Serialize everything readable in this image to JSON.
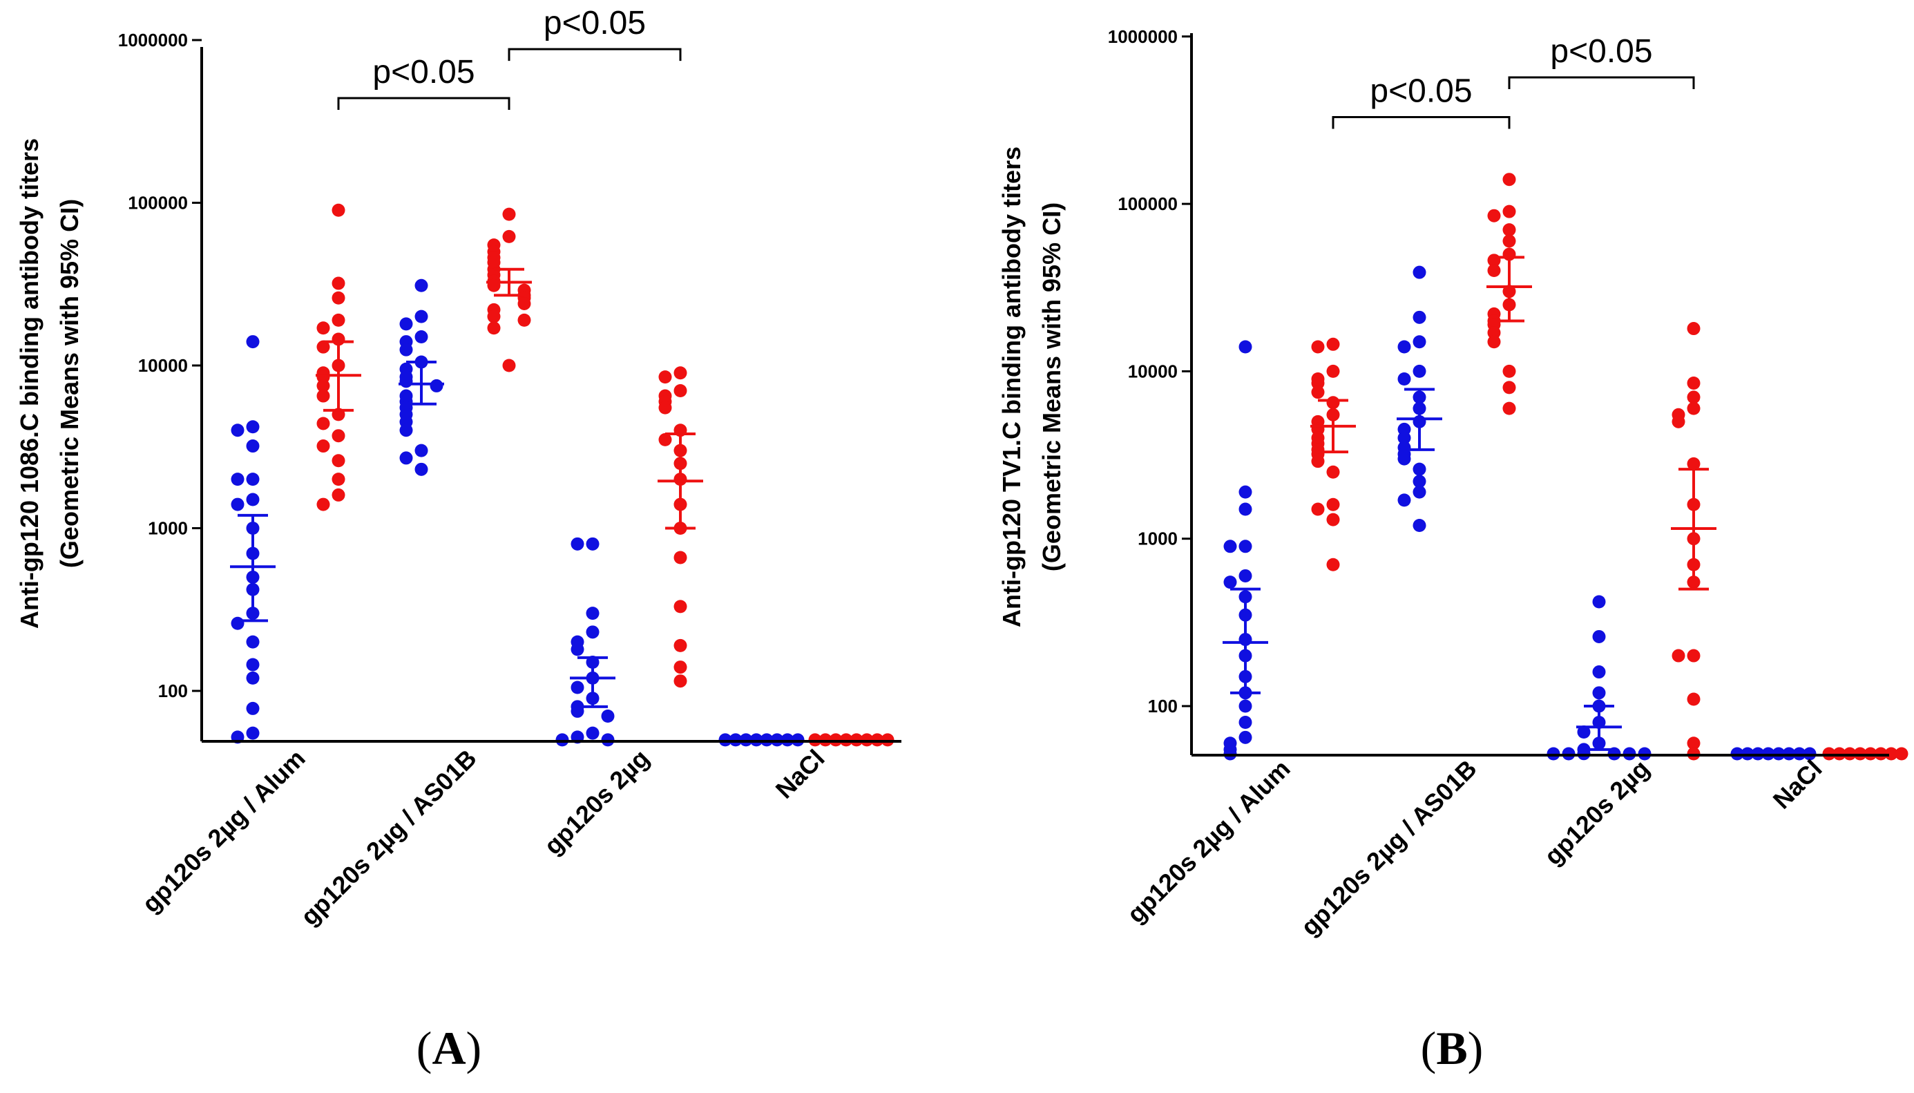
{
  "chart_data": [
    {
      "type": "scatter",
      "panel": "(A)",
      "panel_paren_open": "(",
      "panel_letter": "A",
      "panel_paren_close": ")",
      "ylabel_line1": "Anti-gp120 1086.C binding antibody titers",
      "ylabel_line2": "(Geometric Means with 95% CI)",
      "yscale": "log",
      "ylim": [
        50,
        1000000
      ],
      "yticks": [
        100,
        1000,
        10000,
        100000,
        1000000
      ],
      "ytick_labels": [
        "100",
        "1000",
        "10000",
        "100000",
        "1000000"
      ],
      "category_labels": [
        "gp120s 2µg / Alum",
        "gp120s 2µg / AS01B",
        "gp120s 2µg",
        "NaCl"
      ],
      "series": [
        {
          "name": "gp120s 2µg / Alum (blue)",
          "color": "#1010e0",
          "values": [
            14000,
            4200,
            4000,
            3200,
            2000,
            2000,
            1500,
            1400,
            1000,
            700,
            500,
            420,
            300,
            260,
            200,
            145,
            120,
            78,
            55,
            52
          ],
          "gmean": 580,
          "ci": [
            270,
            1200
          ]
        },
        {
          "name": "gp120s 2µg / Alum (red)",
          "color": "#ee1111",
          "values": [
            90000,
            32000,
            26000,
            19000,
            17000,
            14500,
            13000,
            10000,
            9000,
            8500,
            7500,
            6500,
            5000,
            4400,
            3700,
            3200,
            2600,
            2000,
            1600,
            1400
          ],
          "gmean": 8700,
          "ci": [
            5300,
            14000
          ]
        },
        {
          "name": "gp120s 2µg / AS01B (blue)",
          "color": "#1010e0",
          "values": [
            31000,
            20000,
            18000,
            15000,
            14000,
            12500,
            10500,
            9500,
            8500,
            8000,
            7500,
            6500,
            6000,
            5500,
            5000,
            4500,
            4000,
            3000,
            2700,
            2300
          ],
          "gmean": 7700,
          "ci": [
            5800,
            10500
          ]
        },
        {
          "name": "gp120s 2µg / AS01B (red)",
          "color": "#ee1111",
          "values": [
            85000,
            62000,
            55000,
            50000,
            46000,
            43000,
            39000,
            36000,
            33000,
            31000,
            29000,
            27000,
            26000,
            24000,
            22000,
            20000,
            19000,
            17000,
            10000
          ],
          "gmean": 32500,
          "ci": [
            27000,
            39000
          ]
        },
        {
          "name": "gp120s 2µg (blue)",
          "color": "#1010e0",
          "values": [
            800,
            800,
            300,
            230,
            200,
            180,
            150,
            120,
            105,
            90,
            80,
            75,
            70,
            55,
            52,
            50,
            50
          ],
          "gmean": 120,
          "ci": [
            80,
            160
          ]
        },
        {
          "name": "gp120s 2µg (red)",
          "color": "#ee1111",
          "values": [
            9000,
            8500,
            7000,
            6500,
            6000,
            5500,
            4000,
            3500,
            3000,
            2500,
            2000,
            1400,
            1000,
            660,
            330,
            190,
            140,
            115
          ],
          "gmean": 1950,
          "ci": [
            1000,
            3800
          ]
        },
        {
          "name": "NaCl (blue)",
          "color": "#1010e0",
          "values": [
            50,
            50,
            50,
            50,
            50,
            50,
            50,
            50
          ],
          "gmean": null,
          "ci": null
        },
        {
          "name": "NaCl (red)",
          "color": "#ee1111",
          "values": [
            50,
            50,
            50,
            50,
            50,
            50,
            50,
            50
          ],
          "gmean": null,
          "ci": null
        }
      ],
      "significance": [
        {
          "label": "p<0.05",
          "from_group": 1,
          "to_group": 3,
          "y": 440000
        },
        {
          "label": "p<0.05",
          "from_group": 3,
          "to_group": 5,
          "y": 880000
        }
      ]
    },
    {
      "type": "scatter",
      "panel": "(B)",
      "panel_paren_open": "(",
      "panel_letter": "B",
      "panel_paren_close": ")",
      "ylabel_line1": "Anti-gp120 TV1.C binding antibody titers",
      "ylabel_line2": "(Geometric Means with 95% CI)",
      "yscale": "log",
      "ylim": [
        50,
        1000000
      ],
      "yticks": [
        100,
        1000,
        10000,
        100000,
        1000000
      ],
      "ytick_labels": [
        "100",
        "1000",
        "10000",
        "100000",
        "1000000"
      ],
      "category_labels": [
        "gp120s 2µg / Alum",
        "gp120s 2µg / AS01B",
        "gp120s 2µg",
        "NaCl"
      ],
      "series": [
        {
          "name": "gp120s 2µg / Alum (blue)",
          "color": "#1010e0",
          "values": [
            14000,
            1900,
            1500,
            900,
            900,
            600,
            550,
            450,
            350,
            250,
            200,
            150,
            120,
            100,
            80,
            65,
            60,
            55,
            50
          ],
          "gmean": 240,
          "ci": [
            120,
            500
          ]
        },
        {
          "name": "gp120s 2µg / Alum (red)",
          "color": "#ee1111",
          "values": [
            14500,
            14000,
            10000,
            9000,
            8500,
            7500,
            6500,
            5500,
            5000,
            4500,
            4000,
            3700,
            3400,
            3200,
            2900,
            2500,
            1600,
            1500,
            1300,
            700
          ],
          "gmean": 4700,
          "ci": [
            3300,
            6700
          ]
        },
        {
          "name": "gp120s 2µg / AS01B (blue)",
          "color": "#1010e0",
          "values": [
            39000,
            21000,
            15000,
            14000,
            10000,
            9000,
            7000,
            6000,
            5000,
            4500,
            4000,
            3500,
            3200,
            3000,
            2600,
            2200,
            1900,
            1700,
            1200
          ],
          "gmean": 5200,
          "ci": [
            3400,
            7800
          ]
        },
        {
          "name": "gp120s 2µg / AS01B (red)",
          "color": "#ee1111",
          "values": [
            140000,
            90000,
            85000,
            70000,
            60000,
            50000,
            46000,
            40000,
            30000,
            25000,
            22000,
            20000,
            19000,
            17000,
            15000,
            10000,
            8000,
            6000
          ],
          "gmean": 32000,
          "ci": [
            20000,
            48000
          ]
        },
        {
          "name": "gp120s 2µg (blue)",
          "color": "#1010e0",
          "values": [
            420,
            260,
            160,
            120,
            100,
            80,
            70,
            60,
            55,
            52,
            50,
            50,
            50,
            50,
            50
          ],
          "gmean": 75,
          "ci": [
            55,
            100
          ]
        },
        {
          "name": "gp120s 2µg (red)",
          "color": "#ee1111",
          "values": [
            18000,
            8500,
            7000,
            6000,
            5500,
            5000,
            2800,
            1600,
            1000,
            700,
            550,
            200,
            200,
            110,
            60,
            50
          ],
          "gmean": 1150,
          "ci": [
            500,
            2600
          ]
        },
        {
          "name": "NaCl (blue)",
          "color": "#1010e0",
          "values": [
            50,
            50,
            50,
            50,
            50,
            50,
            50,
            50
          ],
          "gmean": null,
          "ci": null
        },
        {
          "name": "NaCl (red)",
          "color": "#ee1111",
          "values": [
            50,
            50,
            50,
            50,
            50,
            50,
            50,
            50
          ],
          "gmean": null,
          "ci": null
        }
      ],
      "significance": [
        {
          "label": "p<0.05",
          "from_group": 1,
          "to_group": 3,
          "y": 330000
        },
        {
          "label": "p<0.05",
          "from_group": 3,
          "to_group": 5,
          "y": 570000
        }
      ]
    }
  ]
}
